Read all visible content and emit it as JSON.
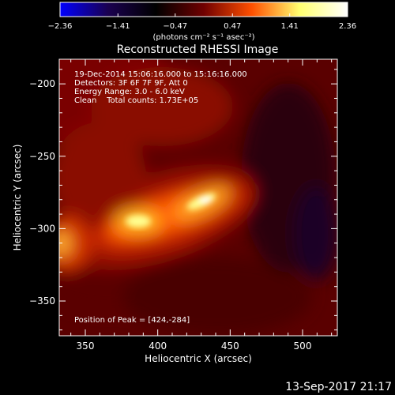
{
  "chart_data": {
    "type": "heatmap",
    "title": "Reconstructed RHESSI Image",
    "xlabel": "Heliocentric X (arcsec)",
    "ylabel": "Heliocentric Y (arcsec)",
    "xlim": [
      332,
      524
    ],
    "ylim": [
      -374,
      -183
    ],
    "xticks": [
      350,
      400,
      450,
      500
    ],
    "yticks": [
      -200,
      -250,
      -300,
      -350
    ],
    "grid": false,
    "colorbar": {
      "ticks": [
        -2.36,
        -1.41,
        -0.47,
        0.47,
        1.41,
        2.36
      ],
      "tick_labels": [
        "−2.36",
        "−1.41",
        "−0.47",
        "0.47",
        "1.41",
        "2.36"
      ],
      "label": "(photons cm⁻² s⁻¹ asec⁻²)",
      "colors": [
        "#0000ff",
        "#1a0050",
        "#000000",
        "#700000",
        "#ff5000",
        "#ffff70",
        "#ffffff"
      ]
    },
    "annotations": [
      "19-Dec-2014 15:06:16.000 to 15:16:16.000",
      "Detectors: 3F 6F 7F 9F, Att 0",
      "Energy Range: 3.0 - 6.0 keV",
      "Clean    Total counts: 1.73E+05"
    ],
    "peak_label": "Position of Peak = [424,-284]",
    "peak": [
      424,
      -284
    ],
    "sources": [
      {
        "x": 424,
        "y": -284,
        "value": 2.36
      },
      {
        "x": 380,
        "y": -298,
        "value": 1.95
      },
      {
        "x": 335,
        "y": -312,
        "value": 1.0
      }
    ],
    "timestamp": "13-Sep-2017 21:17"
  }
}
